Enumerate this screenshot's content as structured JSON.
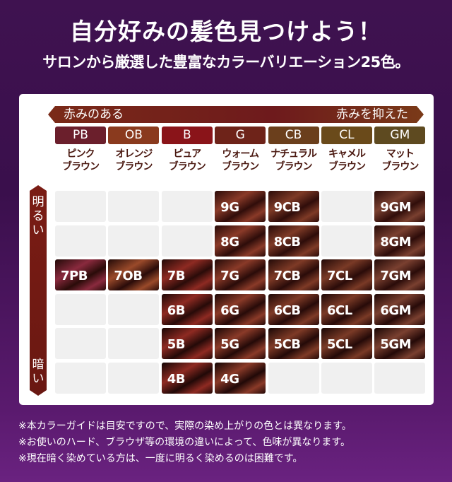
{
  "header": {
    "title": "自分好みの髪色見つけよう！",
    "subtitle": "サロンから厳選した豊富なカラーバリエーション25色。"
  },
  "guide": {
    "horizontal_axis": {
      "left": "赤みのある",
      "right": "赤みを抑えた"
    },
    "vertical_axis": {
      "top": "明るい",
      "bottom": "暗い"
    },
    "categories": [
      {
        "code": "PB",
        "name1": "ピンク",
        "name2": "ブラウン",
        "color": "#6b1f2c"
      },
      {
        "code": "OB",
        "name1": "オレンジ",
        "name2": "ブラウン",
        "color": "#8a3a1e"
      },
      {
        "code": "B",
        "name1": "ピュア",
        "name2": "ブラウン",
        "color": "#8a1419"
      },
      {
        "code": "G",
        "name1": "ウォーム",
        "name2": "ブラウン",
        "color": "#6e2319"
      },
      {
        "code": "CB",
        "name1": "ナチュラル",
        "name2": "ブラウン",
        "color": "#6b3f1c"
      },
      {
        "code": "CL",
        "name1": "キャメル",
        "name2": "ブラウン",
        "color": "#6a4a1a"
      },
      {
        "code": "GM",
        "name1": "マット",
        "name2": "ブラウン",
        "color": "#5e4a20"
      }
    ],
    "rows": [
      [
        null,
        null,
        null,
        "9G",
        "9CB",
        null,
        "9GM"
      ],
      [
        null,
        null,
        null,
        "8G",
        "8CB",
        null,
        "8GM"
      ],
      [
        "7PB",
        "7OB",
        "7B",
        "7G",
        "7CB",
        "7CL",
        "7GM"
      ],
      [
        null,
        null,
        "6B",
        "6G",
        "6CB",
        "6CL",
        "6GM"
      ],
      [
        null,
        null,
        "5B",
        "5G",
        "5CB",
        "5CL",
        "5GM"
      ],
      [
        null,
        null,
        "4B",
        "4G",
        null,
        null,
        null
      ]
    ]
  },
  "notes": [
    "※本カラーガイドは目安ですので、実際の染め上がりの色とは異なります。",
    "※お使いのハード、ブラウザ等の環境の違いによって、色味が異なります。",
    "※現在暗く染めている方は、一度に明るく染めるのは困難です。"
  ]
}
